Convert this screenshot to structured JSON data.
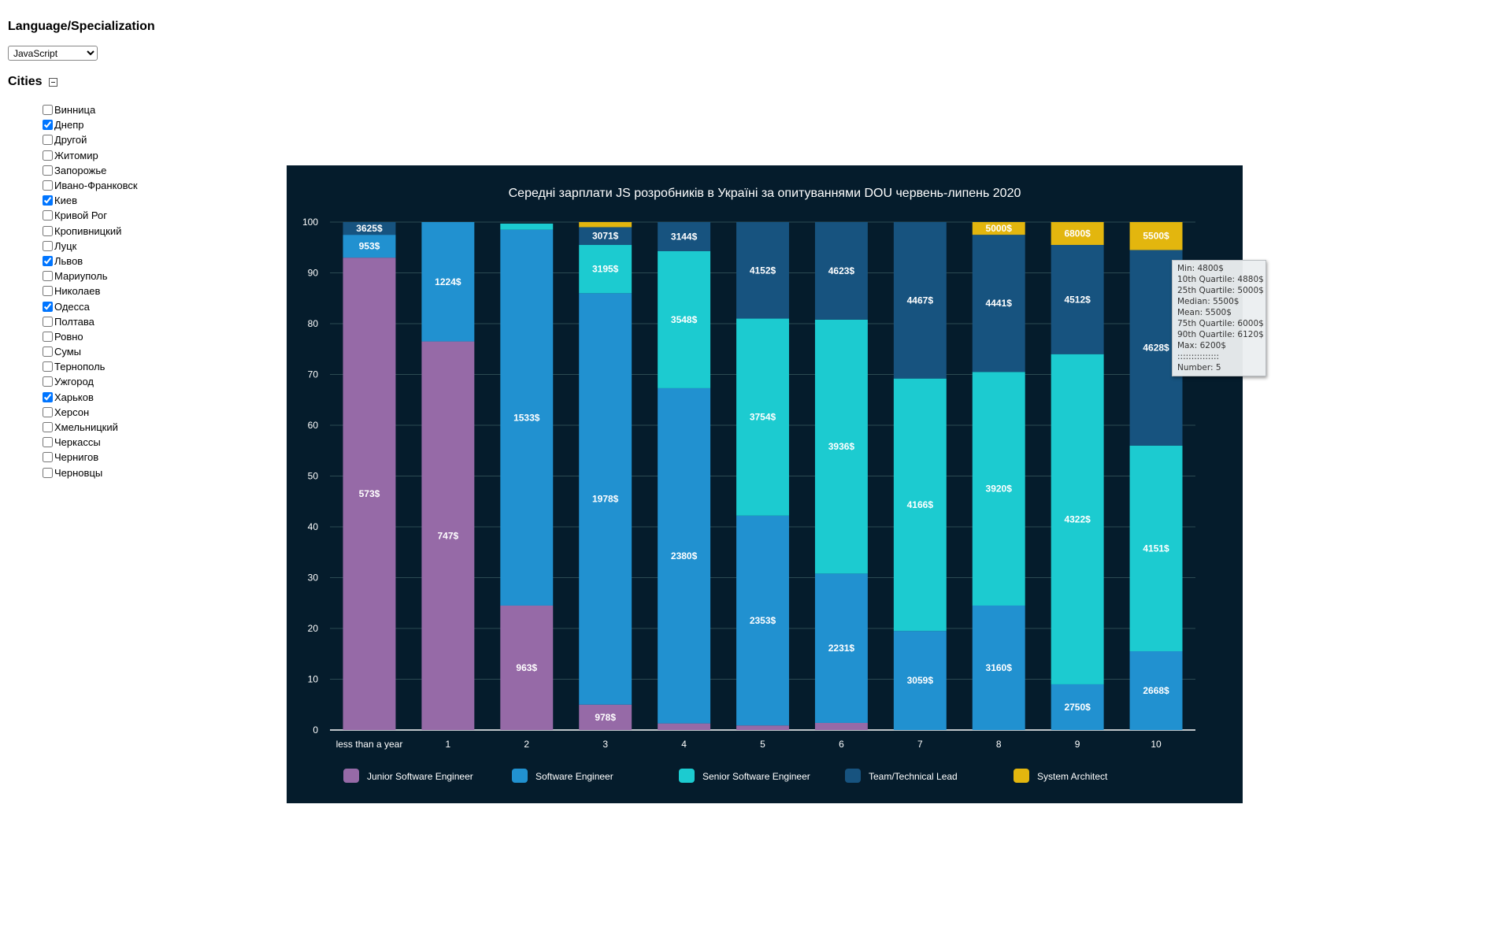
{
  "sidebar": {
    "language_heading": "Language/Specialization",
    "language_select": {
      "selected": "JavaScript"
    },
    "cities_heading": "Cities",
    "cities": [
      {
        "label": "Винница",
        "checked": false
      },
      {
        "label": "Днепр",
        "checked": true
      },
      {
        "label": "Другой",
        "checked": false
      },
      {
        "label": "Житомир",
        "checked": false
      },
      {
        "label": "Запорожье",
        "checked": false
      },
      {
        "label": "Ивано-Франковск",
        "checked": false
      },
      {
        "label": "Киев",
        "checked": true
      },
      {
        "label": "Кривой Рог",
        "checked": false
      },
      {
        "label": "Кропивницкий",
        "checked": false
      },
      {
        "label": "Луцк",
        "checked": false
      },
      {
        "label": "Львов",
        "checked": true
      },
      {
        "label": "Мариуполь",
        "checked": false
      },
      {
        "label": "Николаев",
        "checked": false
      },
      {
        "label": "Одесса",
        "checked": true
      },
      {
        "label": "Полтава",
        "checked": false
      },
      {
        "label": "Ровно",
        "checked": false
      },
      {
        "label": "Сумы",
        "checked": false
      },
      {
        "label": "Тернополь",
        "checked": false
      },
      {
        "label": "Ужгород",
        "checked": false
      },
      {
        "label": "Харьков",
        "checked": true
      },
      {
        "label": "Херсон",
        "checked": false
      },
      {
        "label": "Хмельницкий",
        "checked": false
      },
      {
        "label": "Черкассы",
        "checked": false
      },
      {
        "label": "Чернигов",
        "checked": false
      },
      {
        "label": "Черновцы",
        "checked": false
      }
    ]
  },
  "chart_data": {
    "type": "bar",
    "stacked": true,
    "title": "Середні зарплати JS розробників в Україні за опитуваннями DOU червень-липень 2020",
    "xlabel": "",
    "ylabel": "",
    "ylim": [
      0,
      100
    ],
    "yticks": [
      0,
      10,
      20,
      30,
      40,
      50,
      60,
      70,
      80,
      90,
      100
    ],
    "grid": true,
    "legend_position": "bottom",
    "background": "#051c2c",
    "categories": [
      "less than a year",
      "1",
      "2",
      "3",
      "4",
      "5",
      "6",
      "7",
      "8",
      "9",
      "10"
    ],
    "series": [
      {
        "name": "Junior Software Engineer",
        "color": "#966aa7",
        "values": [
          93,
          76.5,
          24.5,
          5,
          1.3,
          0.9,
          1.4,
          0,
          0,
          0,
          0
        ],
        "labels": [
          "573$",
          "747$",
          "963$",
          "978$",
          "",
          "",
          "",
          "",
          "",
          "",
          ""
        ]
      },
      {
        "name": "Software Engineer",
        "color": "#2191d0",
        "values": [
          4.5,
          23.5,
          74,
          81,
          66,
          41.3,
          29.4,
          19.5,
          24.5,
          9,
          15.5
        ],
        "labels": [
          "953$",
          "1224$",
          "1533$",
          "1978$",
          "2380$",
          "2353$",
          "2231$",
          "3059$",
          "3160$",
          "2750$",
          "2668$"
        ]
      },
      {
        "name": "Senior Software Engineer",
        "color": "#1ccbd0",
        "values": [
          0,
          0,
          1.2,
          9.5,
          27,
          38.8,
          50,
          49.7,
          46,
          65,
          40.5
        ],
        "labels": [
          "",
          "",
          "",
          "3195$",
          "3548$",
          "3754$",
          "3936$",
          "4166$",
          "3920$",
          "4322$",
          "4151$"
        ]
      },
      {
        "name": "Team/Technical Lead",
        "color": "#17537f",
        "values": [
          2.5,
          0,
          0,
          3.5,
          5.7,
          19,
          19.2,
          30.8,
          27,
          21.5,
          38.5
        ],
        "labels": [
          "3625$",
          "",
          "",
          "3071$",
          "3144$",
          "4152$",
          "4623$",
          "4467$",
          "4441$",
          "4512$",
          "4628$"
        ]
      },
      {
        "name": "System Architect",
        "color": "#e3b60e",
        "values": [
          0,
          0,
          0,
          1,
          0,
          0,
          0,
          0,
          2.5,
          4.5,
          5.5
        ],
        "labels": [
          "",
          "",
          "",
          "",
          "",
          "",
          "",
          "",
          "5000$",
          "6800$",
          "5500$"
        ]
      }
    ],
    "tooltip": {
      "lines": [
        "Min: 4800$",
        "10th Quartile: 4880$",
        "25th Quartile: 5000$",
        "Median: 5500$",
        "Mean: 5500$",
        "75th Quartile: 6000$",
        "90th Quartile: 6120$",
        "Max: 6200$",
        ":::::::::::::::",
        "Number: 5"
      ]
    }
  }
}
